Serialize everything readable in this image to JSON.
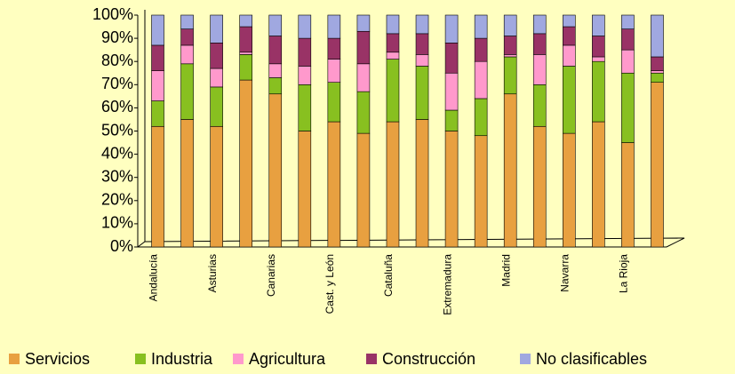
{
  "chart_data": {
    "type": "stacked-bar",
    "categories": [
      "Andalucía",
      null,
      "Asturias",
      null,
      "Canarias",
      null,
      "Cast. y León",
      null,
      "Cataluña",
      null,
      "Extremadura",
      null,
      "Madrid",
      null,
      "Navarra",
      null,
      "La Rioja",
      null
    ],
    "series": [
      {
        "name": "Servicios",
        "color": "#e8a040",
        "values": [
          52,
          55,
          52,
          72,
          66,
          50,
          54,
          49,
          54,
          55,
          50,
          48,
          66,
          52,
          49,
          54,
          45,
          71
        ]
      },
      {
        "name": "Industria",
        "color": "#88c020",
        "values": [
          11,
          24,
          17,
          11,
          7,
          20,
          17,
          18,
          27,
          23,
          9,
          16,
          16,
          18,
          29,
          26,
          30,
          4
        ]
      },
      {
        "name": "Agricultura",
        "color": "#ff99cc",
        "values": [
          13,
          8,
          8,
          1,
          6,
          8,
          10,
          12,
          3,
          5,
          16,
          16,
          1,
          13,
          9,
          2,
          10,
          1
        ]
      },
      {
        "name": "Construcción",
        "color": "#993366",
        "values": [
          11,
          7,
          11,
          11,
          12,
          12,
          9,
          14,
          8,
          9,
          13,
          10,
          8,
          9,
          8,
          9,
          9,
          6
        ]
      },
      {
        "name": "No clasificables",
        "color": "#a0a8e0",
        "values": [
          13,
          6,
          12,
          5,
          9,
          10,
          10,
          7,
          8,
          8,
          12,
          10,
          9,
          8,
          5,
          9,
          6,
          18
        ]
      }
    ],
    "ylim": [
      0,
      100
    ],
    "yticks": [
      {
        "value": 0,
        "label": "0%"
      },
      {
        "value": 10,
        "label": "10%"
      },
      {
        "value": 20,
        "label": "20%"
      },
      {
        "value": 30,
        "label": "30%"
      },
      {
        "value": 40,
        "label": "40%"
      },
      {
        "value": 50,
        "label": "50%"
      },
      {
        "value": 60,
        "label": "60%"
      },
      {
        "value": 70,
        "label": "70%"
      },
      {
        "value": 80,
        "label": "80%"
      },
      {
        "value": 90,
        "label": "90%"
      },
      {
        "value": 100,
        "label": "100%"
      }
    ],
    "legend": "bottom"
  }
}
